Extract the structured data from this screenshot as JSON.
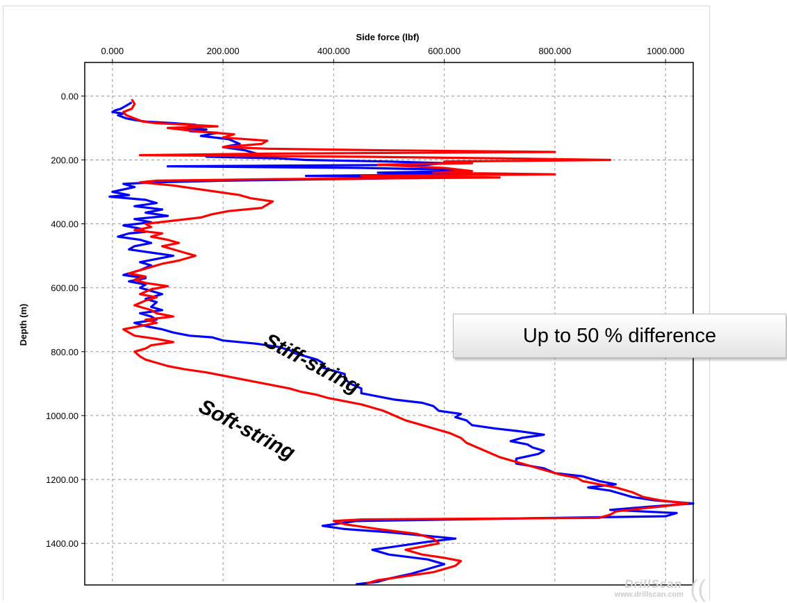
{
  "chart_data": {
    "type": "line",
    "title": "",
    "xlabel": "Side force (lbf)",
    "ylabel": "Depth (m)",
    "xlim": [
      -50,
      1050
    ],
    "ylim": [
      1530,
      -105
    ],
    "x_ticks": [
      0,
      200,
      400,
      600,
      800,
      1000
    ],
    "x_tick_labels": [
      "0.000",
      "200.000",
      "400.000",
      "600.000",
      "800.000",
      "1000.000"
    ],
    "y_ticks": [
      0,
      200,
      400,
      600,
      800,
      1000,
      1200,
      1400
    ],
    "y_tick_labels": [
      "0.00",
      "200.00",
      "400.00",
      "600.00",
      "800.00",
      "1000.00",
      "1200.00",
      "1400.00"
    ],
    "x_axis_position": "top",
    "grid": true,
    "series": [
      {
        "name": "Stiff-string",
        "color": "#0000ff",
        "points": [
          [
            35,
            20
          ],
          [
            25,
            30
          ],
          [
            15,
            40
          ],
          [
            5,
            45
          ],
          [
            0,
            50
          ],
          [
            20,
            55
          ],
          [
            10,
            60
          ],
          [
            25,
            70
          ],
          [
            40,
            75
          ],
          [
            60,
            80
          ],
          [
            110,
            85
          ],
          [
            150,
            90
          ],
          [
            130,
            100
          ],
          [
            170,
            105
          ],
          [
            140,
            110
          ],
          [
            190,
            115
          ],
          [
            160,
            125
          ],
          [
            210,
            135
          ],
          [
            230,
            150
          ],
          [
            200,
            160
          ],
          [
            240,
            170
          ],
          [
            260,
            180
          ],
          [
            170,
            190
          ],
          [
            300,
            195
          ],
          [
            350,
            200
          ],
          [
            500,
            205
          ],
          [
            600,
            210
          ],
          [
            570,
            215
          ],
          [
            100,
            220
          ],
          [
            450,
            225
          ],
          [
            600,
            230
          ],
          [
            630,
            235
          ],
          [
            480,
            240
          ],
          [
            630,
            245
          ],
          [
            350,
            250
          ],
          [
            610,
            255
          ],
          [
            200,
            265
          ],
          [
            80,
            270
          ],
          [
            20,
            275
          ],
          [
            40,
            285
          ],
          [
            0,
            300
          ],
          [
            30,
            310
          ],
          [
            -5,
            315
          ],
          [
            60,
            325
          ],
          [
            80,
            335
          ],
          [
            40,
            345
          ],
          [
            90,
            355
          ],
          [
            60,
            365
          ],
          [
            100,
            375
          ],
          [
            40,
            385
          ],
          [
            70,
            395
          ],
          [
            20,
            405
          ],
          [
            50,
            415
          ],
          [
            60,
            425
          ],
          [
            30,
            430
          ],
          [
            10,
            440
          ],
          [
            50,
            450
          ],
          [
            70,
            460
          ],
          [
            40,
            470
          ],
          [
            30,
            480
          ],
          [
            70,
            490
          ],
          [
            110,
            500
          ],
          [
            80,
            510
          ],
          [
            50,
            520
          ],
          [
            70,
            530
          ],
          [
            50,
            545
          ],
          [
            20,
            560
          ],
          [
            60,
            570
          ],
          [
            30,
            580
          ],
          [
            60,
            590
          ],
          [
            50,
            600
          ],
          [
            70,
            610
          ],
          [
            90,
            620
          ],
          [
            60,
            635
          ],
          [
            80,
            645
          ],
          [
            70,
            660
          ],
          [
            90,
            670
          ],
          [
            50,
            680
          ],
          [
            70,
            690
          ],
          [
            80,
            700
          ],
          [
            40,
            710
          ],
          [
            60,
            720
          ],
          [
            90,
            730
          ],
          [
            110,
            740
          ],
          [
            140,
            750
          ],
          [
            180,
            755
          ],
          [
            200,
            765
          ],
          [
            260,
            775
          ],
          [
            300,
            785
          ],
          [
            320,
            795
          ],
          [
            330,
            805
          ],
          [
            350,
            815
          ],
          [
            370,
            825
          ],
          [
            380,
            835
          ],
          [
            380,
            850
          ],
          [
            400,
            860
          ],
          [
            420,
            870
          ],
          [
            420,
            885
          ],
          [
            430,
            900
          ],
          [
            450,
            915
          ],
          [
            450,
            930
          ],
          [
            480,
            940
          ],
          [
            510,
            950
          ],
          [
            560,
            960
          ],
          [
            580,
            970
          ],
          [
            590,
            985
          ],
          [
            630,
            995
          ],
          [
            620,
            1005
          ],
          [
            640,
            1015
          ],
          [
            650,
            1030
          ],
          [
            690,
            1040
          ],
          [
            740,
            1050
          ],
          [
            780,
            1060
          ],
          [
            740,
            1070
          ],
          [
            720,
            1080
          ],
          [
            750,
            1090
          ],
          [
            760,
            1100
          ],
          [
            780,
            1110
          ],
          [
            770,
            1120
          ],
          [
            730,
            1135
          ],
          [
            730,
            1150
          ],
          [
            780,
            1165
          ],
          [
            800,
            1180
          ],
          [
            850,
            1190
          ],
          [
            880,
            1205
          ],
          [
            910,
            1215
          ],
          [
            860,
            1225
          ],
          [
            900,
            1235
          ],
          [
            920,
            1245
          ],
          [
            940,
            1255
          ],
          [
            980,
            1265
          ],
          [
            1050,
            1275
          ],
          [
            970,
            1285
          ],
          [
            900,
            1295
          ],
          [
            1020,
            1305
          ],
          [
            1000,
            1315
          ],
          [
            800,
            1320
          ],
          [
            440,
            1330
          ],
          [
            380,
            1345
          ],
          [
            420,
            1355
          ],
          [
            500,
            1365
          ],
          [
            560,
            1375
          ],
          [
            620,
            1385
          ],
          [
            570,
            1395
          ],
          [
            530,
            1405
          ],
          [
            470,
            1420
          ],
          [
            500,
            1435
          ],
          [
            570,
            1450
          ],
          [
            600,
            1465
          ],
          [
            570,
            1480
          ],
          [
            540,
            1495
          ],
          [
            500,
            1510
          ],
          [
            480,
            1520
          ],
          [
            440,
            1528
          ]
        ]
      },
      {
        "name": "Soft-string",
        "color": "#ff0000",
        "points": [
          [
            35,
            10
          ],
          [
            40,
            25
          ],
          [
            35,
            40
          ],
          [
            20,
            50
          ],
          [
            25,
            60
          ],
          [
            40,
            70
          ],
          [
            55,
            80
          ],
          [
            80,
            85
          ],
          [
            140,
            90
          ],
          [
            190,
            95
          ],
          [
            100,
            100
          ],
          [
            150,
            110
          ],
          [
            220,
            120
          ],
          [
            200,
            130
          ],
          [
            280,
            140
          ],
          [
            270,
            150
          ],
          [
            200,
            160
          ],
          [
            280,
            165
          ],
          [
            500,
            170
          ],
          [
            800,
            175
          ],
          [
            300,
            180
          ],
          [
            50,
            185
          ],
          [
            450,
            190
          ],
          [
            700,
            195
          ],
          [
            900,
            200
          ],
          [
            600,
            205
          ],
          [
            650,
            210
          ],
          [
            480,
            215
          ],
          [
            600,
            225
          ],
          [
            650,
            235
          ],
          [
            580,
            240
          ],
          [
            800,
            245
          ],
          [
            450,
            250
          ],
          [
            700,
            255
          ],
          [
            300,
            260
          ],
          [
            80,
            265
          ],
          [
            50,
            270
          ],
          [
            110,
            280
          ],
          [
            150,
            290
          ],
          [
            190,
            300
          ],
          [
            230,
            310
          ],
          [
            250,
            320
          ],
          [
            290,
            330
          ],
          [
            280,
            340
          ],
          [
            270,
            350
          ],
          [
            210,
            360
          ],
          [
            180,
            370
          ],
          [
            160,
            380
          ],
          [
            110,
            390
          ],
          [
            60,
            400
          ],
          [
            70,
            410
          ],
          [
            40,
            420
          ],
          [
            90,
            430
          ],
          [
            70,
            440
          ],
          [
            100,
            450
          ],
          [
            120,
            460
          ],
          [
            90,
            470
          ],
          [
            110,
            480
          ],
          [
            130,
            490
          ],
          [
            150,
            500
          ],
          [
            120,
            515
          ],
          [
            90,
            525
          ],
          [
            70,
            535
          ],
          [
            50,
            545
          ],
          [
            30,
            555
          ],
          [
            60,
            565
          ],
          [
            40,
            575
          ],
          [
            60,
            585
          ],
          [
            100,
            595
          ],
          [
            70,
            605
          ],
          [
            50,
            620
          ],
          [
            80,
            630
          ],
          [
            60,
            640
          ],
          [
            40,
            655
          ],
          [
            70,
            670
          ],
          [
            80,
            680
          ],
          [
            110,
            690
          ],
          [
            60,
            700
          ],
          [
            80,
            710
          ],
          [
            50,
            720
          ],
          [
            20,
            730
          ],
          [
            30,
            740
          ],
          [
            40,
            750
          ],
          [
            80,
            760
          ],
          [
            110,
            770
          ],
          [
            70,
            780
          ],
          [
            60,
            790
          ],
          [
            40,
            800
          ],
          [
            50,
            815
          ],
          [
            60,
            825
          ],
          [
            80,
            835
          ],
          [
            100,
            845
          ],
          [
            130,
            855
          ],
          [
            170,
            865
          ],
          [
            200,
            875
          ],
          [
            230,
            885
          ],
          [
            260,
            895
          ],
          [
            290,
            905
          ],
          [
            320,
            915
          ],
          [
            340,
            925
          ],
          [
            370,
            935
          ],
          [
            390,
            945
          ],
          [
            420,
            955
          ],
          [
            450,
            965
          ],
          [
            470,
            975
          ],
          [
            490,
            985
          ],
          [
            510,
            1000
          ],
          [
            530,
            1015
          ],
          [
            560,
            1030
          ],
          [
            590,
            1045
          ],
          [
            610,
            1055
          ],
          [
            630,
            1070
          ],
          [
            640,
            1085
          ],
          [
            660,
            1100
          ],
          [
            680,
            1115
          ],
          [
            700,
            1130
          ],
          [
            730,
            1145
          ],
          [
            760,
            1160
          ],
          [
            790,
            1175
          ],
          [
            810,
            1185
          ],
          [
            840,
            1195
          ],
          [
            850,
            1205
          ],
          [
            880,
            1215
          ],
          [
            910,
            1225
          ],
          [
            940,
            1240
          ],
          [
            960,
            1255
          ],
          [
            990,
            1265
          ],
          [
            1040,
            1275
          ],
          [
            990,
            1285
          ],
          [
            960,
            1290
          ],
          [
            910,
            1300
          ],
          [
            900,
            1310
          ],
          [
            880,
            1320
          ],
          [
            450,
            1325
          ],
          [
            400,
            1330
          ],
          [
            420,
            1340
          ],
          [
            480,
            1355
          ],
          [
            550,
            1370
          ],
          [
            580,
            1385
          ],
          [
            590,
            1400
          ],
          [
            560,
            1410
          ],
          [
            530,
            1420
          ],
          [
            560,
            1435
          ],
          [
            600,
            1445
          ],
          [
            630,
            1455
          ],
          [
            620,
            1470
          ],
          [
            580,
            1490
          ],
          [
            520,
            1505
          ],
          [
            480,
            1515
          ],
          [
            460,
            1525
          ]
        ]
      }
    ],
    "annotations": [
      "Stiff-string",
      "Soft-string"
    ],
    "callout": "Up to 50 % difference",
    "watermark": {
      "logo": "DrillScan",
      "url": "www.drillscan.com"
    }
  }
}
